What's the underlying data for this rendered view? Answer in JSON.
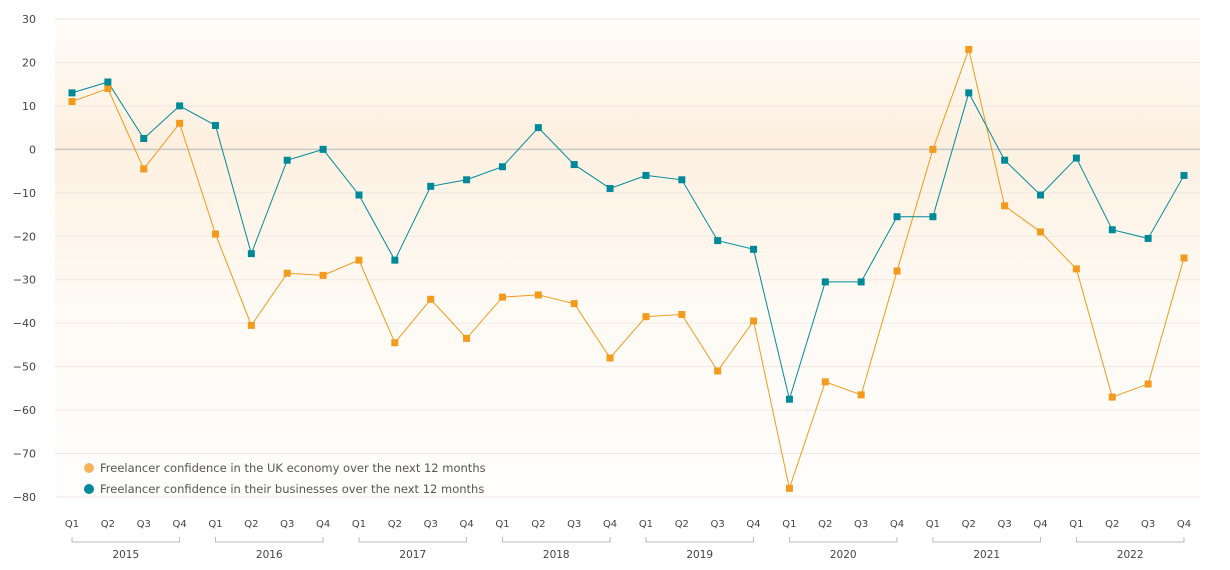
{
  "chart_data": {
    "type": "line",
    "title": "",
    "xlabel": "",
    "ylabel": "",
    "ylim": [
      -80,
      30
    ],
    "yticks": [
      30,
      20,
      10,
      0,
      -10,
      -20,
      -30,
      -40,
      -50,
      -60,
      -70,
      -80
    ],
    "grid": true,
    "legend_position": "bottom-left",
    "years": [
      "2015",
      "2016",
      "2017",
      "2018",
      "2019",
      "2020",
      "2021",
      "2022"
    ],
    "quarters": [
      "Q1",
      "Q2",
      "Q3",
      "Q4"
    ],
    "series": [
      {
        "name": "Freelancer confidence in the UK economy over the next 12 months",
        "color": "#f29b1d",
        "legend_color": "#f7b35c",
        "values": [
          11,
          14,
          -4.5,
          6,
          -19.5,
          -40.5,
          -28.5,
          -29,
          -25.5,
          -44.5,
          -34.5,
          -43.5,
          -34,
          -33.5,
          -35.5,
          -48,
          -38.5,
          -38,
          -51,
          -39.5,
          -78,
          -53.5,
          -56.5,
          -28,
          0,
          23,
          -13,
          -19,
          -27.5,
          -57,
          -54,
          -25
        ]
      },
      {
        "name": "Freelancer confidence in their businesses over the next 12 months",
        "color": "#008a99",
        "legend_color": "#008a99",
        "values": [
          13,
          15.5,
          2.5,
          10,
          5.5,
          -24,
          -2.5,
          0,
          -10.5,
          -25.5,
          -8.5,
          -7,
          -4,
          5,
          -3.5,
          -9,
          -6,
          -7,
          -21,
          -23,
          -57.5,
          -30.5,
          -30.5,
          -15.5,
          -15.5,
          13,
          -2.5,
          -10.5,
          -2,
          -18.5,
          -20.5,
          -6
        ]
      }
    ]
  }
}
